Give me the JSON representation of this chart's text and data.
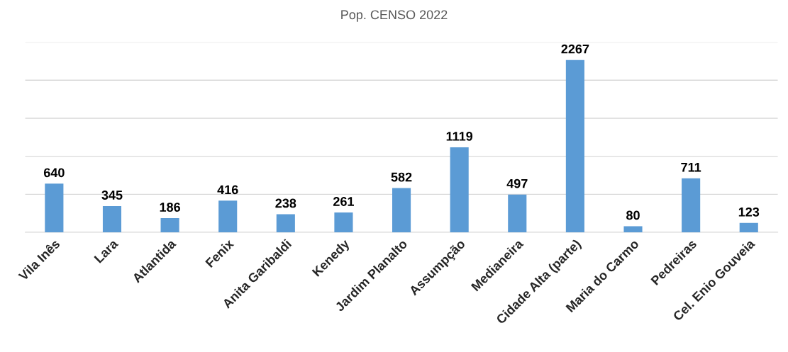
{
  "chart_data": {
    "type": "bar",
    "title": "Pop. CENSO 2022",
    "categories": [
      "Vila Inês",
      "Lara",
      "Atlantida",
      "Fenix",
      "Anita Garibaldi",
      "Kenedy",
      "Jardim Planalto",
      "Assumpção",
      "Medianeira",
      "Cidade Alta (parte)",
      "Maria do Carmo",
      "Pedreiras",
      "Cel. Enio Gouveia"
    ],
    "values": [
      640,
      345,
      186,
      416,
      238,
      261,
      582,
      1119,
      497,
      2267,
      80,
      711,
      123
    ],
    "color": "#5b9bd5",
    "ylim": [
      0,
      2500
    ],
    "yticks": [
      {
        "value": 0,
        "label": null
      },
      {
        "value": 500,
        "label": null
      },
      {
        "value": 1000,
        "label": null
      },
      {
        "value": 1500,
        "label": null
      },
      {
        "value": 2000,
        "label": null
      },
      {
        "value": 2500,
        "label": null
      }
    ],
    "tick_labels": "x",
    "grid": "y",
    "data_labels": true,
    "legend": false
  }
}
